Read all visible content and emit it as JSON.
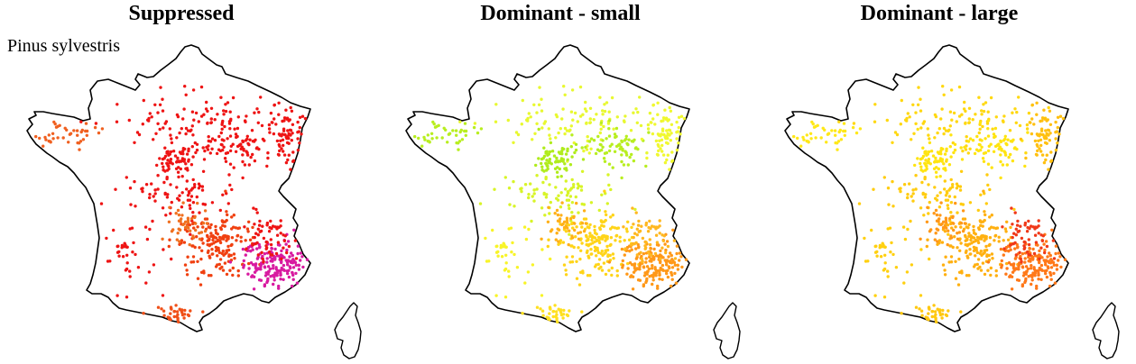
{
  "species": "Pinus sylvestris",
  "panels": [
    {
      "title": "Suppressed",
      "base_color": "#f01212",
      "clusters": [
        {
          "region": "brittany",
          "color": "#f06020",
          "n": 40
        },
        {
          "region": "north",
          "color": "#ee1414",
          "n": 110
        },
        {
          "region": "paris",
          "color": "#ee1414",
          "n": 70
        },
        {
          "region": "champagne",
          "color": "#ee1414",
          "n": 70
        },
        {
          "region": "northeast",
          "color": "#ee1414",
          "n": 70
        },
        {
          "region": "center",
          "color": "#ee1414",
          "n": 80
        },
        {
          "region": "massif",
          "color": "#f04010",
          "n": 180
        },
        {
          "region": "massif_orange",
          "color": "#f07020",
          "n": 45
        },
        {
          "region": "alps",
          "color": "#d81aa0",
          "n": 170
        },
        {
          "region": "alps_red",
          "color": "#ee1414",
          "n": 60
        },
        {
          "region": "southwest",
          "color": "#ee1414",
          "n": 40
        },
        {
          "region": "pyrenees",
          "color": "#f05018",
          "n": 35
        }
      ]
    },
    {
      "title": "Dominant - small",
      "base_color": "#ffff30",
      "clusters": [
        {
          "region": "brittany",
          "color": "#b8ee20",
          "n": 40
        },
        {
          "region": "north",
          "color": "#e8f830",
          "n": 110
        },
        {
          "region": "paris",
          "color": "#b0ec1c",
          "n": 70
        },
        {
          "region": "champagne",
          "color": "#b8ee20",
          "n": 70
        },
        {
          "region": "northeast",
          "color": "#f0f830",
          "n": 70
        },
        {
          "region": "center",
          "color": "#d8f428",
          "n": 80
        },
        {
          "region": "massif",
          "color": "#ffd418",
          "n": 180
        },
        {
          "region": "massif_orange",
          "color": "#ffb018",
          "n": 45
        },
        {
          "region": "alps",
          "color": "#ff9818",
          "n": 170
        },
        {
          "region": "alps_red",
          "color": "#ffb820",
          "n": 60
        },
        {
          "region": "southwest",
          "color": "#f8f428",
          "n": 40
        },
        {
          "region": "pyrenees",
          "color": "#ffe020",
          "n": 35
        }
      ]
    },
    {
      "title": "Dominant - large",
      "base_color": "#ffe000",
      "clusters": [
        {
          "region": "brittany",
          "color": "#ffe818",
          "n": 40
        },
        {
          "region": "north",
          "color": "#ffd810",
          "n": 110
        },
        {
          "region": "paris",
          "color": "#ffe410",
          "n": 70
        },
        {
          "region": "champagne",
          "color": "#ffe410",
          "n": 70
        },
        {
          "region": "northeast",
          "color": "#ffc010",
          "n": 70
        },
        {
          "region": "center",
          "color": "#ffcc10",
          "n": 80
        },
        {
          "region": "massif",
          "color": "#ffb010",
          "n": 180
        },
        {
          "region": "massif_orange",
          "color": "#ff9818",
          "n": 45
        },
        {
          "region": "alps",
          "color": "#ff7818",
          "n": 170
        },
        {
          "region": "alps_red",
          "color": "#f03818",
          "n": 60
        },
        {
          "region": "southwest",
          "color": "#ffd010",
          "n": 40
        },
        {
          "region": "pyrenees",
          "color": "#ffc810",
          "n": 35
        }
      ]
    }
  ]
}
